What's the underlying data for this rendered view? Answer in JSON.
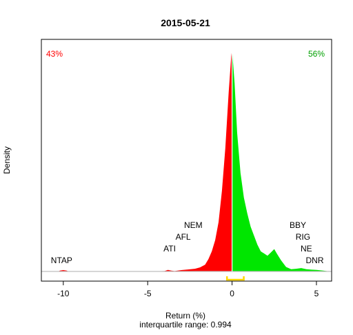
{
  "chart_data": {
    "type": "area",
    "title": "2015-05-21",
    "xlabel": "Return (%)",
    "ylabel": "Density",
    "subtitle": "interquartile range: 0.994",
    "xlim": [
      -11.3,
      5.9
    ],
    "x_ticks": [
      -10,
      -5,
      0,
      5
    ],
    "x_tick_labels": [
      "-10",
      "-5",
      "0",
      "5"
    ],
    "neg_pct_label": "43%",
    "pos_pct_label": "56%",
    "colors": {
      "negative": "#ff0000",
      "positive": "#00e600",
      "iqr_bracket": "#ffd700",
      "neg_pct_text": "#ff0000",
      "pos_pct_text": "#00a000",
      "baseline": "#bebebe",
      "zero_line": "#ffffff"
    },
    "iqr": [
      -0.3,
      0.694
    ],
    "density": [
      [
        -10.3,
        0.0
      ],
      [
        -10.2,
        0.004
      ],
      [
        -10.0,
        0.006
      ],
      [
        -9.8,
        0.004
      ],
      [
        -9.7,
        0.0
      ],
      [
        -5.0,
        0.0
      ],
      [
        -4.0,
        0.002
      ],
      [
        -3.8,
        0.007
      ],
      [
        -3.6,
        0.004
      ],
      [
        -3.4,
        0.002
      ],
      [
        -3.0,
        0.006
      ],
      [
        -2.6,
        0.009
      ],
      [
        -2.2,
        0.012
      ],
      [
        -1.9,
        0.018
      ],
      [
        -1.6,
        0.03
      ],
      [
        -1.4,
        0.055
      ],
      [
        -1.2,
        0.09
      ],
      [
        -1.0,
        0.14
      ],
      [
        -0.8,
        0.22
      ],
      [
        -0.6,
        0.36
      ],
      [
        -0.4,
        0.55
      ],
      [
        -0.2,
        0.8
      ],
      [
        -0.05,
        0.96
      ],
      [
        0.0,
        0.99
      ],
      [
        0.15,
        0.84
      ],
      [
        0.3,
        0.62
      ],
      [
        0.5,
        0.44
      ],
      [
        0.7,
        0.33
      ],
      [
        0.9,
        0.26
      ],
      [
        1.1,
        0.2
      ],
      [
        1.3,
        0.16
      ],
      [
        1.5,
        0.12
      ],
      [
        1.7,
        0.09
      ],
      [
        1.9,
        0.08
      ],
      [
        2.1,
        0.07
      ],
      [
        2.3,
        0.085
      ],
      [
        2.5,
        0.1
      ],
      [
        2.65,
        0.08
      ],
      [
        2.9,
        0.05
      ],
      [
        3.2,
        0.02
      ],
      [
        3.5,
        0.01
      ],
      [
        3.8,
        0.012
      ],
      [
        4.1,
        0.015
      ],
      [
        4.4,
        0.01
      ],
      [
        4.7,
        0.008
      ],
      [
        5.0,
        0.007
      ],
      [
        5.4,
        0.004
      ],
      [
        5.8,
        0.0
      ]
    ],
    "annotations": [
      {
        "label": "NTAP",
        "x": -10.1,
        "level": 1,
        "anchor": "middle"
      },
      {
        "label": "ATI",
        "x": -3.7,
        "level": 2,
        "anchor": "middle"
      },
      {
        "label": "AFL",
        "x": -2.9,
        "level": 3,
        "anchor": "middle"
      },
      {
        "label": "NEM",
        "x": -2.3,
        "level": 4,
        "anchor": "middle"
      },
      {
        "label": "BBY",
        "x": 3.9,
        "level": 4,
        "anchor": "middle"
      },
      {
        "label": "RIG",
        "x": 4.2,
        "level": 3,
        "anchor": "middle"
      },
      {
        "label": "NE",
        "x": 4.4,
        "level": 2,
        "anchor": "middle"
      },
      {
        "label": "DNR",
        "x": 4.9,
        "level": 1,
        "anchor": "middle"
      }
    ]
  }
}
